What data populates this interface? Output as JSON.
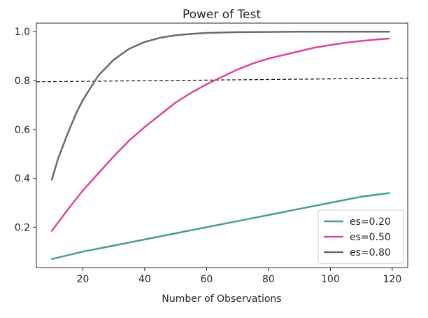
{
  "chart_data": {
    "type": "line",
    "title": "Power of Test",
    "xlabel": "Number of Observations",
    "ylabel": "",
    "xlim": [
      5,
      125
    ],
    "ylim": [
      0.035,
      1.035
    ],
    "xticks": [
      20,
      40,
      60,
      80,
      100,
      120
    ],
    "yticks": [
      0.2,
      0.4,
      0.6,
      0.8,
      1.0
    ],
    "xtick_labels": [
      "20",
      "40",
      "60",
      "80",
      "100",
      "120"
    ],
    "ytick_labels": [
      "0.2",
      "0.4",
      "0.6",
      "0.8",
      "1.0"
    ],
    "grid": false,
    "legend_position": "lower-right",
    "reference_line": {
      "style": "dashed",
      "color": "#111111",
      "x": [
        5,
        125
      ],
      "y": [
        0.795,
        0.81
      ]
    },
    "series": [
      {
        "name": "es=0.20",
        "color": "#4c9e80",
        "x": [
          10,
          20,
          30,
          40,
          50,
          60,
          70,
          80,
          90,
          100,
          110,
          119
        ],
        "values": [
          0.07,
          0.1,
          0.125,
          0.15,
          0.175,
          0.2,
          0.225,
          0.25,
          0.275,
          0.3,
          0.325,
          0.34
        ]
      },
      {
        "name": "es=0.50",
        "color": "#d9489a",
        "x": [
          10,
          15,
          20,
          25,
          30,
          35,
          40,
          45,
          50,
          55,
          60,
          65,
          70,
          75,
          80,
          85,
          90,
          95,
          100,
          105,
          110,
          115,
          119
        ],
        "values": [
          0.185,
          0.27,
          0.35,
          0.42,
          0.49,
          0.555,
          0.61,
          0.66,
          0.71,
          0.75,
          0.785,
          0.815,
          0.845,
          0.87,
          0.89,
          0.905,
          0.92,
          0.935,
          0.945,
          0.955,
          0.962,
          0.968,
          0.972
        ]
      },
      {
        "name": "es=0.80",
        "color": "#6a6a6a",
        "x": [
          10,
          12,
          15,
          18,
          20,
          25,
          30,
          35,
          40,
          45,
          50,
          55,
          60,
          70,
          80,
          90,
          100,
          110,
          119
        ],
        "values": [
          0.395,
          0.48,
          0.58,
          0.67,
          0.72,
          0.82,
          0.885,
          0.93,
          0.958,
          0.975,
          0.985,
          0.991,
          0.995,
          0.998,
          0.999,
          1.0,
          1.0,
          1.0,
          1.0
        ]
      }
    ]
  }
}
